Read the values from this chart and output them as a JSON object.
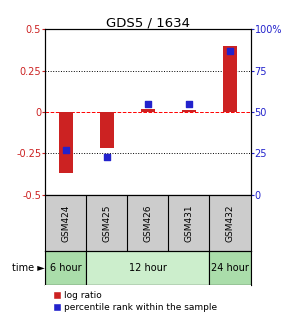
{
  "title": "GDS5 / 1634",
  "samples": [
    "GSM424",
    "GSM425",
    "GSM426",
    "GSM431",
    "GSM432"
  ],
  "log_ratio": [
    -0.37,
    -0.22,
    0.02,
    0.01,
    0.4
  ],
  "percentile_rank": [
    27,
    23,
    55,
    55,
    87
  ],
  "ylim_left": [
    -0.5,
    0.5
  ],
  "ylim_right": [
    0,
    100
  ],
  "yticks_left": [
    -0.5,
    -0.25,
    0,
    0.25,
    0.5
  ],
  "ytick_labels_left": [
    "-0.5",
    "-0.25",
    "0",
    "0.25",
    "0.5"
  ],
  "yticks_right": [
    0,
    25,
    50,
    75,
    100
  ],
  "ytick_labels_right": [
    "0",
    "25",
    "50",
    "75",
    "100%"
  ],
  "hlines": [
    0.25,
    0,
    -0.25
  ],
  "hline_styles": [
    "dotted",
    "dashed",
    "dotted"
  ],
  "hline_colors": [
    "black",
    "red",
    "black"
  ],
  "time_groups": [
    {
      "label": "6 hour",
      "indices": [
        0
      ],
      "color": "#aaddaa"
    },
    {
      "label": "12 hour",
      "indices": [
        1,
        2,
        3
      ],
      "color": "#cceecc"
    },
    {
      "label": "24 hour",
      "indices": [
        4
      ],
      "color": "#aaddaa"
    }
  ],
  "bar_color": "#cc2222",
  "dot_color": "#2222cc",
  "bar_width": 0.35,
  "dot_size": 25,
  "legend_bar_label": "log ratio",
  "legend_dot_label": "percentile rank within the sample",
  "background_color": "#ffffff",
  "sample_box_color": "#cccccc"
}
